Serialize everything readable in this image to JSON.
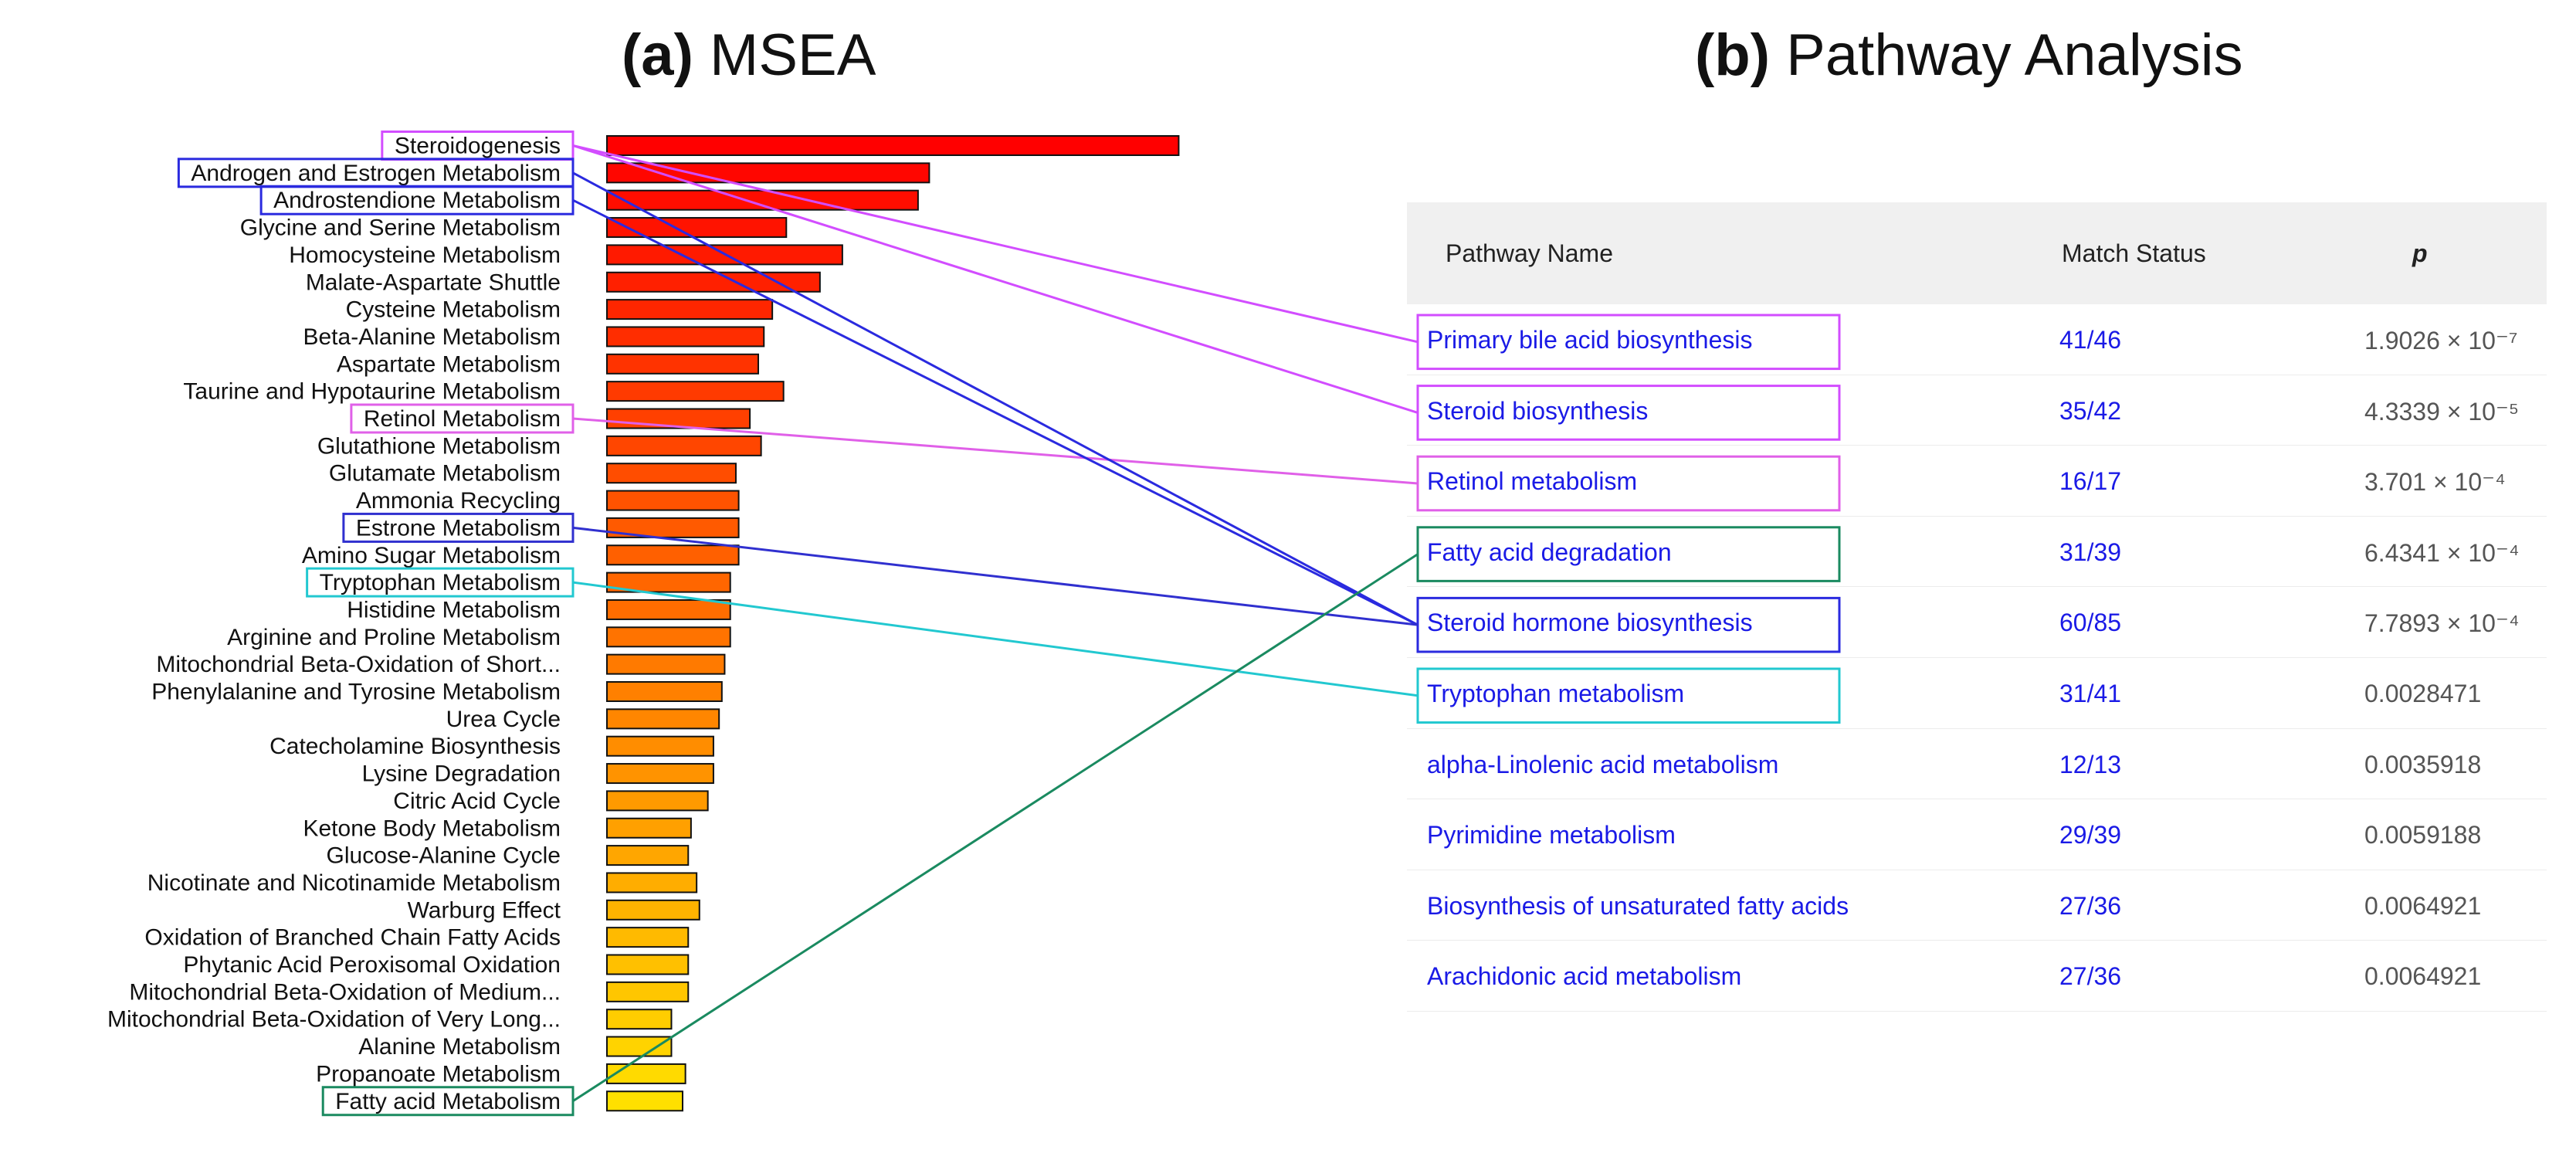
{
  "panel_a": {
    "label": "(a)",
    "title": "MSEA"
  },
  "panel_b": {
    "label": "(b)",
    "title": "Pathway Analysis"
  },
  "chart_data": {
    "type": "bar",
    "orientation": "horizontal",
    "title": "MSEA",
    "xlabel": "",
    "ylabel": "",
    "xlim": [
      0,
      22
    ],
    "categories": [
      "Steroidogenesis",
      "Androgen and Estrogen Metabolism",
      "Androstendione Metabolism",
      "Glycine and Serine Metabolism",
      "Homocysteine Metabolism",
      "Malate-Aspartate Shuttle",
      "Cysteine Metabolism",
      "Beta-Alanine Metabolism",
      "Aspartate Metabolism",
      "Taurine and Hypotaurine Metabolism",
      "Retinol Metabolism",
      "Glutathione Metabolism",
      "Glutamate Metabolism",
      "Ammonia Recycling",
      "Estrone Metabolism",
      "Amino Sugar Metabolism",
      "Tryptophan Metabolism",
      "Histidine Metabolism",
      "Arginine and Proline Metabolism",
      "Mitochondrial Beta-Oxidation of Short...",
      "Phenylalanine and Tyrosine Metabolism",
      "Urea Cycle",
      "Catecholamine Biosynthesis",
      "Lysine Degradation",
      "Citric Acid Cycle",
      "Ketone Body Metabolism",
      "Glucose-Alanine Cycle",
      "Nicotinate and Nicotinamide Metabolism",
      "Warburg Effect",
      "Oxidation of Branched Chain Fatty Acids",
      "Phytanic Acid Peroxisomal Oxidation",
      "Mitochondrial Beta-Oxidation of Medium...",
      "Mitochondrial Beta-Oxidation of Very Long...",
      "Alanine Metabolism",
      "Propanoate Metabolism",
      "Fatty acid Metabolism"
    ],
    "values": [
      20.4,
      11.5,
      11.1,
      6.4,
      8.4,
      7.6,
      5.9,
      5.6,
      5.4,
      6.3,
      5.1,
      5.5,
      4.6,
      4.7,
      4.7,
      4.7,
      4.4,
      4.4,
      4.4,
      4.2,
      4.1,
      4.0,
      3.8,
      3.8,
      3.6,
      3.0,
      2.9,
      3.2,
      3.3,
      2.9,
      2.9,
      2.9,
      2.3,
      2.3,
      2.8,
      2.7
    ],
    "highlighted": [
      {
        "category": "Steroidogenesis",
        "color": "#d24dff"
      },
      {
        "category": "Androgen and Estrogen Metabolism",
        "color": "#2a2adf"
      },
      {
        "category": "Androstendione Metabolism",
        "color": "#2a2adf"
      },
      {
        "category": "Retinol Metabolism",
        "color": "#e060e8"
      },
      {
        "category": "Estrone Metabolism",
        "color": "#3030cf"
      },
      {
        "category": "Tryptophan Metabolism",
        "color": "#22c8d0"
      },
      {
        "category": "Fatty acid Metabolism",
        "color": "#1a8a60"
      }
    ],
    "bar_color_scale": [
      "#ff0000",
      "#ff7000",
      "#ffe000"
    ]
  },
  "table": {
    "headers": {
      "name": "Pathway Name",
      "match": "Match Status",
      "p": "p"
    },
    "rows": [
      {
        "name": "Primary bile acid biosynthesis",
        "match": "41/46",
        "p": "1.9026 × 10⁻⁷",
        "box": "#d24dff"
      },
      {
        "name": "Steroid biosynthesis",
        "match": "35/42",
        "p": "4.3339 × 10⁻⁵",
        "box": "#d24dff"
      },
      {
        "name": "Retinol metabolism",
        "match": "16/17",
        "p": "3.701 × 10⁻⁴",
        "box": "#e060e8"
      },
      {
        "name": "Fatty acid degradation",
        "match": "31/39",
        "p": "6.4341 × 10⁻⁴",
        "box": "#1a8a60"
      },
      {
        "name": "Steroid hormone biosynthesis",
        "match": "60/85",
        "p": "7.7893 × 10⁻⁴",
        "box": "#2a2adf"
      },
      {
        "name": "Tryptophan metabolism",
        "match": "31/41",
        "p": "0.0028471",
        "box": "#22c8d0"
      },
      {
        "name": "alpha-Linolenic acid metabolism",
        "match": "12/13",
        "p": "0.0035918",
        "box": ""
      },
      {
        "name": "Pyrimidine metabolism",
        "match": "29/39",
        "p": "0.0059188",
        "box": ""
      },
      {
        "name": "Biosynthesis of unsaturated fatty acids",
        "match": "27/36",
        "p": "0.0064921",
        "box": ""
      },
      {
        "name": "Arachidonic acid metabolism",
        "match": "27/36",
        "p": "0.0064921",
        "box": ""
      }
    ]
  },
  "connections": [
    {
      "from": "Steroidogenesis",
      "to": "Primary bile acid biosynthesis",
      "color": "#d24dff"
    },
    {
      "from": "Steroidogenesis",
      "to": "Steroid biosynthesis",
      "color": "#d24dff"
    },
    {
      "from": "Retinol Metabolism",
      "to": "Retinol metabolism",
      "color": "#e060e8"
    },
    {
      "from": "Androgen and Estrogen Metabolism",
      "to": "Steroid hormone biosynthesis",
      "color": "#2a2adf"
    },
    {
      "from": "Androstendione Metabolism",
      "to": "Steroid hormone biosynthesis",
      "color": "#2a2adf"
    },
    {
      "from": "Estrone Metabolism",
      "to": "Steroid hormone biosynthesis",
      "color": "#3030cf"
    },
    {
      "from": "Tryptophan Metabolism",
      "to": "Tryptophan metabolism",
      "color": "#22c8d0"
    },
    {
      "from": "Fatty acid Metabolism",
      "to": "Fatty acid degradation",
      "color": "#1a8a60"
    }
  ]
}
